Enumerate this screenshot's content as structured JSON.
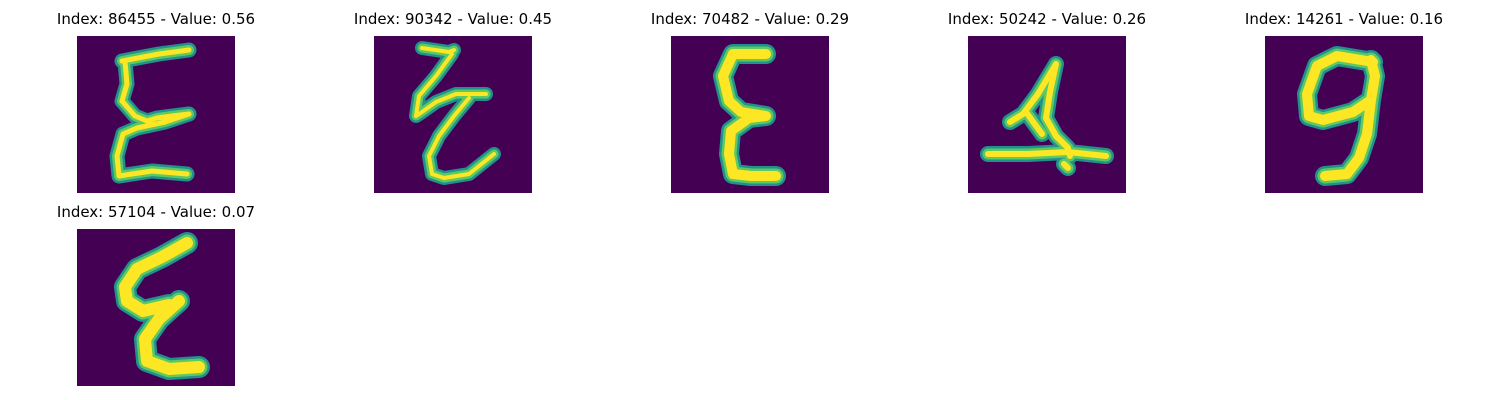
{
  "panels": [
    {
      "title": "Index: 86455 - Value: 0.56",
      "glyph": "E"
    },
    {
      "title": "Index: 90342 - Value: 0.45",
      "glyph": "E"
    },
    {
      "title": "Index: 70482 - Value: 0.29",
      "glyph": "E"
    },
    {
      "title": "Index: 50242 - Value: 0.26",
      "glyph": "4"
    },
    {
      "title": "Index: 14261 - Value: 0.16",
      "glyph": "9"
    },
    {
      "title": "Index: 57104 - Value: 0.07",
      "glyph": "E"
    }
  ],
  "colors": {
    "background": "#440154",
    "stroke_edge": "#21918c",
    "stroke_mid": "#5ec962",
    "stroke_core": "#fde725"
  }
}
